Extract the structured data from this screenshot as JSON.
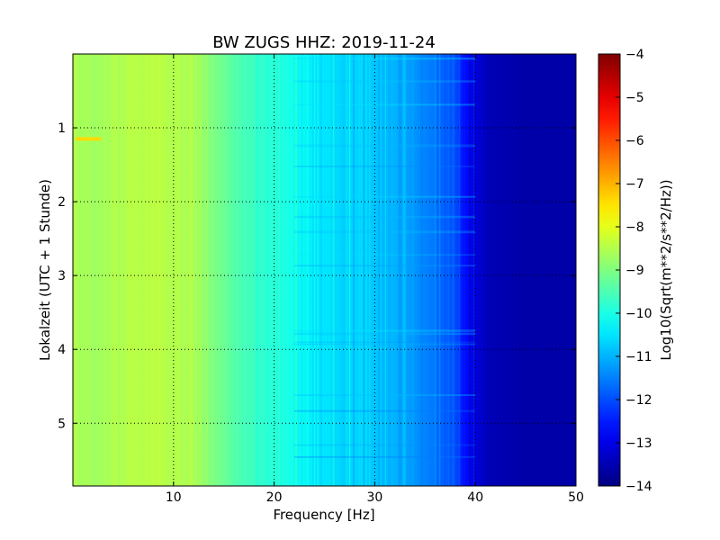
{
  "chart_data": {
    "type": "heatmap",
    "title": "BW ZUGS HHZ: 2019-11-24",
    "xlabel": "Frequency [Hz]",
    "ylabel": "Lokalzeit (UTC + 1 Stunde)",
    "xlim": [
      0,
      50
    ],
    "ylim": [
      5.85,
      0
    ],
    "y_inverted": true,
    "grid": true,
    "grid_style": "dotted",
    "x_ticks": [
      10,
      20,
      30,
      40,
      50
    ],
    "x_tick_labels": [
      "10",
      "20",
      "30",
      "40",
      "50"
    ],
    "y_ticks": [
      1,
      2,
      3,
      4,
      5
    ],
    "y_tick_labels": [
      "1",
      "2",
      "3",
      "4",
      "5"
    ],
    "colorbar": {
      "label": "Log10(Sqrt(m**2/s**2/Hz))",
      "colormap": "jet",
      "range": [
        -14,
        -4
      ],
      "ticks": [
        -4,
        -5,
        -6,
        -7,
        -8,
        -9,
        -10,
        -11,
        -12,
        -13,
        -14
      ],
      "tick_labels": [
        "−4",
        "−5",
        "−6",
        "−7",
        "−8",
        "−9",
        "−10",
        "−11",
        "−12",
        "−13",
        "−14"
      ]
    },
    "spectrum_profile": {
      "frequency_hz": [
        0,
        2,
        5,
        8,
        10,
        12,
        14,
        16,
        18,
        20,
        22,
        24,
        26,
        28,
        30,
        32,
        34,
        36,
        38,
        39,
        40,
        41,
        42,
        45,
        50
      ],
      "log10_amplitude": [
        -8.5,
        -8.7,
        -8.5,
        -8.4,
        -8.5,
        -8.6,
        -9.0,
        -9.4,
        -9.7,
        -9.9,
        -10.1,
        -10.4,
        -10.6,
        -10.7,
        -10.8,
        -11.0,
        -11.3,
        -11.6,
        -12.0,
        -12.6,
        -13.2,
        -13.4,
        -13.5,
        -13.6,
        -13.6
      ]
    },
    "annotations": [
      {
        "description": "short bright streak",
        "frequency_hz": [
          0.3,
          2.8
        ],
        "time_h": 1.15,
        "log10_amplitude": -7.4
      }
    ]
  }
}
